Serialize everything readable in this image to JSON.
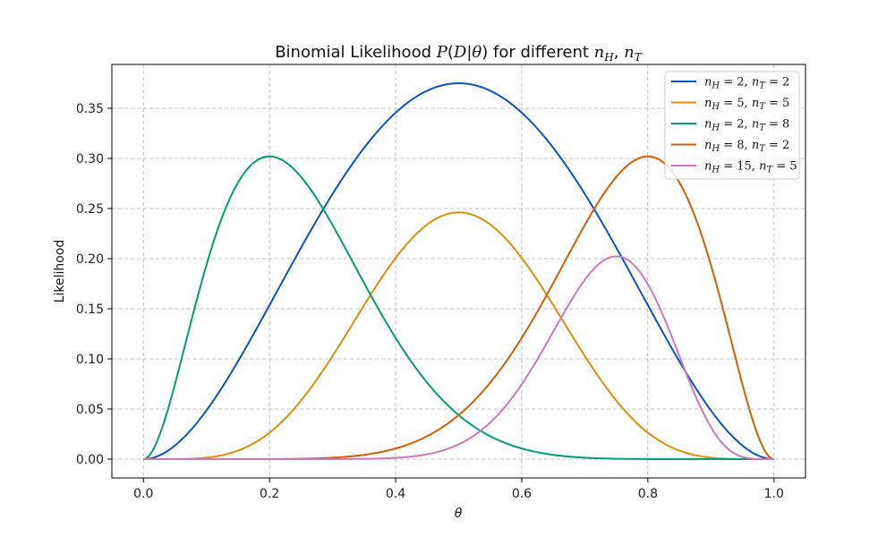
{
  "chart_data": {
    "type": "line",
    "title": "Binomial Likelihood P(D|θ) for different nH, nT",
    "title_parts": {
      "prefix": "Binomial Likelihood ",
      "P": "P",
      "D": "D",
      "theta": "θ",
      "middle": " for different ",
      "n": "n",
      "H": "H",
      "T": "T"
    },
    "xlabel": "θ",
    "ylabel": "Likelihood",
    "xlim": [
      -0.05,
      1.05
    ],
    "ylim": [
      -0.01875,
      0.39375
    ],
    "xticks": [
      0.0,
      0.2,
      0.4,
      0.6,
      0.8,
      1.0
    ],
    "xtick_labels": [
      "0.0",
      "0.2",
      "0.4",
      "0.6",
      "0.8",
      "1.0"
    ],
    "yticks": [
      0.0,
      0.05,
      0.1,
      0.15,
      0.2,
      0.25,
      0.3,
      0.35
    ],
    "ytick_labels": [
      "0.00",
      "0.05",
      "0.10",
      "0.15",
      "0.20",
      "0.25",
      "0.30",
      "0.35"
    ],
    "grid": true,
    "legend_position": "top-right",
    "series": [
      {
        "name": "nH = 2, nT = 2",
        "label_parts": {
          "n1": "n",
          "H": "H",
          "v1": "= 2,",
          "n2": "n",
          "T": "T",
          "v2": "= 2"
        },
        "nH": 2,
        "nT": 2,
        "color": "#0b53c5",
        "x": [
          0.0,
          0.05,
          0.1,
          0.15,
          0.2,
          0.25,
          0.3,
          0.35,
          0.4,
          0.45,
          0.5,
          0.55,
          0.6,
          0.65,
          0.7,
          0.75,
          0.8,
          0.85,
          0.9,
          0.95,
          1.0
        ],
        "values": [
          0.0,
          0.0135,
          0.0486,
          0.0975,
          0.1536,
          0.2109,
          0.2646,
          0.3105,
          0.3456,
          0.3675,
          0.375,
          0.3675,
          0.3456,
          0.3105,
          0.2646,
          0.2109,
          0.1536,
          0.0975,
          0.0486,
          0.0135,
          0.0
        ]
      },
      {
        "name": "nH = 5, nT = 5",
        "label_parts": {
          "n1": "n",
          "H": "H",
          "v1": "= 5,",
          "n2": "n",
          "T": "T",
          "v2": "= 5"
        },
        "nH": 5,
        "nT": 5,
        "color": "#de8f05",
        "x": [
          0.0,
          0.05,
          0.1,
          0.15,
          0.2,
          0.25,
          0.3,
          0.35,
          0.4,
          0.45,
          0.5,
          0.55,
          0.6,
          0.65,
          0.7,
          0.75,
          0.8,
          0.85,
          0.9,
          0.95,
          1.0
        ],
        "values": [
          0.0,
          0.0001,
          0.0015,
          0.0085,
          0.0264,
          0.0584,
          0.1029,
          0.1536,
          0.2007,
          0.234,
          0.2461,
          0.234,
          0.2007,
          0.1536,
          0.1029,
          0.0584,
          0.0264,
          0.0085,
          0.0015,
          0.0001,
          0.0
        ]
      },
      {
        "name": "nH = 2, nT = 8",
        "label_parts": {
          "n1": "n",
          "H": "H",
          "v1": "= 2,",
          "n2": "n",
          "T": "T",
          "v2": "= 8"
        },
        "nH": 2,
        "nT": 8,
        "color": "#029e73",
        "x": [
          0.0,
          0.05,
          0.1,
          0.15,
          0.2,
          0.25,
          0.3,
          0.35,
          0.4,
          0.45,
          0.5,
          0.55,
          0.6,
          0.65,
          0.7,
          0.75,
          0.8,
          0.85,
          0.9,
          0.95,
          1.0
        ],
        "values": [
          0.0,
          0.0746,
          0.1937,
          0.2759,
          0.302,
          0.2816,
          0.2335,
          0.1757,
          0.1209,
          0.0763,
          0.0439,
          0.0229,
          0.0106,
          0.0043,
          0.0014,
          0.0004,
          0.0001,
          0.0,
          0.0,
          0.0,
          0.0
        ]
      },
      {
        "name": "nH = 8, nT = 2",
        "label_parts": {
          "n1": "n",
          "H": "H",
          "v1": "= 8,",
          "n2": "n",
          "T": "T",
          "v2": "= 2"
        },
        "nH": 8,
        "nT": 2,
        "color": "#d55e00",
        "x": [
          0.0,
          0.05,
          0.1,
          0.15,
          0.2,
          0.25,
          0.3,
          0.35,
          0.4,
          0.45,
          0.5,
          0.55,
          0.6,
          0.65,
          0.7,
          0.75,
          0.8,
          0.85,
          0.9,
          0.95,
          1.0
        ],
        "values": [
          0.0,
          0.0,
          0.0,
          0.0,
          0.0001,
          0.0004,
          0.0014,
          0.0043,
          0.0106,
          0.0229,
          0.0439,
          0.0763,
          0.1209,
          0.1757,
          0.2335,
          0.2816,
          0.302,
          0.2759,
          0.1937,
          0.0746,
          0.0
        ]
      },
      {
        "name": "nH = 15, nT = 5",
        "label_parts": {
          "n1": "n",
          "H": "H",
          "v1": "= 15,",
          "n2": "n",
          "T": "T",
          "v2": "= 5"
        },
        "nH": 15,
        "nT": 5,
        "color": "#cc78bc",
        "x": [
          0.0,
          0.05,
          0.1,
          0.15,
          0.2,
          0.25,
          0.3,
          0.35,
          0.4,
          0.45,
          0.5,
          0.55,
          0.6,
          0.65,
          0.7,
          0.75,
          0.8,
          0.85,
          0.9,
          0.95,
          1.0
        ],
        "values": [
          0.0,
          0.0,
          0.0,
          0.0,
          0.0,
          0.0,
          0.0,
          0.0003,
          0.0013,
          0.0049,
          0.0148,
          0.0366,
          0.0746,
          0.1272,
          0.1789,
          0.2023,
          0.1746,
          0.1028,
          0.0319,
          0.0022,
          0.0
        ]
      }
    ]
  }
}
